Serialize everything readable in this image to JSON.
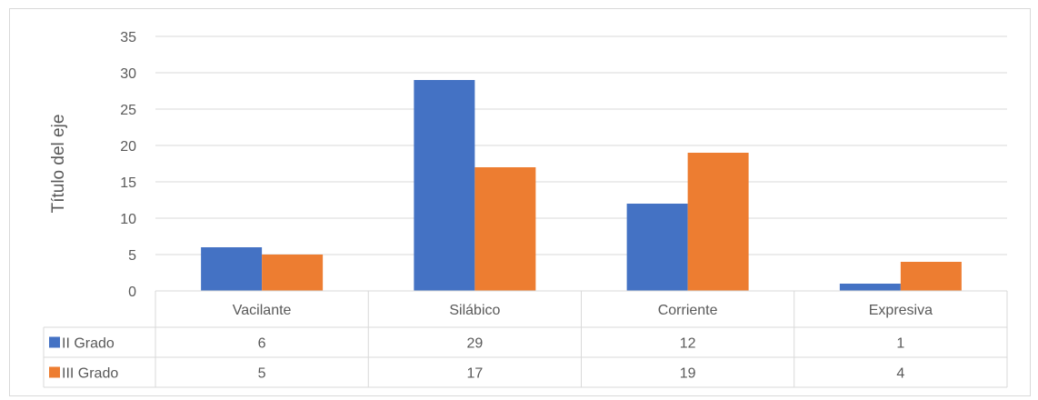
{
  "chart_data": {
    "type": "bar",
    "title": "",
    "xlabel": "",
    "ylabel": "Título del eje",
    "ylim": [
      0,
      35
    ],
    "yticks": [
      0,
      5,
      10,
      15,
      20,
      25,
      30,
      35
    ],
    "categories": [
      "Vacilante",
      "Silábico",
      "Corriente",
      "Expresiva"
    ],
    "grid": true,
    "legend": "data-table-left",
    "series": [
      {
        "name": "II Grado",
        "color": "#4472C4",
        "values": [
          6,
          29,
          12,
          1
        ]
      },
      {
        "name": "III Grado",
        "color": "#ED7D31",
        "values": [
          5,
          17,
          19,
          4
        ]
      }
    ]
  }
}
